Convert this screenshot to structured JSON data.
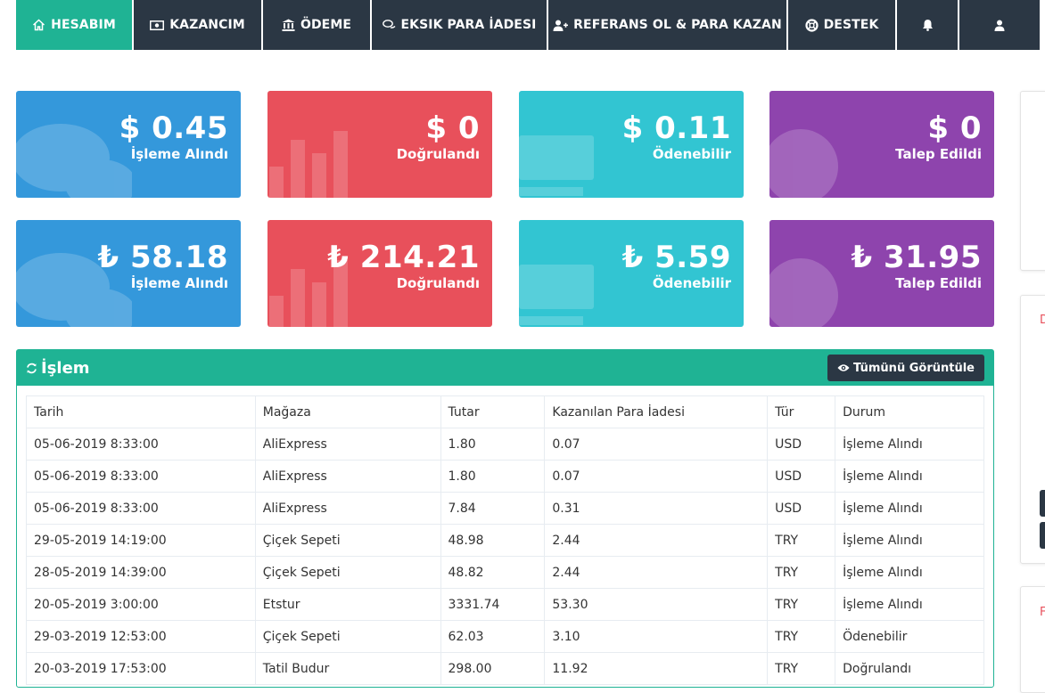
{
  "nav": {
    "items": [
      {
        "label": "HESABIM",
        "icon": "home-icon"
      },
      {
        "label": "KAZANCIM",
        "icon": "money-icon"
      },
      {
        "label": "ÖDEME",
        "icon": "bank-icon"
      },
      {
        "label": "EKSIK PARA İADESI",
        "icon": "chat-icon"
      },
      {
        "label": "REFERANS OL & PARA KAZAN",
        "icon": "user-plus-icon"
      },
      {
        "label": "DESTEK",
        "icon": "life-ring-icon"
      },
      {
        "label": "",
        "icon": "bell-icon"
      },
      {
        "label": "",
        "icon": "user-icon"
      }
    ],
    "active_index": 0
  },
  "stats": {
    "usd": [
      {
        "value": "$ 0.45",
        "label": "İşleme Alındı"
      },
      {
        "value": "$ 0",
        "label": "Doğrulandı"
      },
      {
        "value": "$ 0.11",
        "label": "Ödenebilir"
      },
      {
        "value": "$ 0",
        "label": "Talep Edildi"
      }
    ],
    "try": [
      {
        "value": "₺ 58.18",
        "label": "İşleme Alındı"
      },
      {
        "value": "₺ 214.21",
        "label": "Doğrulandı"
      },
      {
        "value": "₺ 5.59",
        "label": "Ödenebilir"
      },
      {
        "value": "₺ 31.95",
        "label": "Talep Edildi"
      }
    ]
  },
  "panel": {
    "title": "İşlem",
    "view_all_label": "Tümünü Görüntüle",
    "columns": [
      "Tarih",
      "Mağaza",
      "Tutar",
      "Kazanılan Para İadesi",
      "Tür",
      "Durum"
    ],
    "rows": [
      [
        "05-06-2019 8:33:00",
        "AliExpress",
        "1.80",
        "0.07",
        "USD",
        "İşleme Alındı"
      ],
      [
        "05-06-2019 8:33:00",
        "AliExpress",
        "1.80",
        "0.07",
        "USD",
        "İşleme Alındı"
      ],
      [
        "05-06-2019 8:33:00",
        "AliExpress",
        "7.84",
        "0.31",
        "USD",
        "İşleme Alındı"
      ],
      [
        "29-05-2019 14:19:00",
        "Çiçek Sepeti",
        "48.98",
        "2.44",
        "TRY",
        "İşleme Alındı"
      ],
      [
        "28-05-2019 14:39:00",
        "Çiçek Sepeti",
        "48.82",
        "2.44",
        "TRY",
        "İşleme Alındı"
      ],
      [
        "20-05-2019 3:00:00",
        "Etstur",
        "3331.74",
        "53.30",
        "TRY",
        "İşleme Alındı"
      ],
      [
        "29-03-2019 12:53:00",
        "Çiçek Sepeti",
        "62.03",
        "3.10",
        "TRY",
        "Ödenebilir"
      ],
      [
        "20-03-2019 17:53:00",
        "Tatil Budur",
        "298.00",
        "11.92",
        "TRY",
        "Doğrulandı"
      ]
    ]
  },
  "side": {
    "letter_1": "D",
    "letter_2": "F"
  },
  "colors": {
    "nav_dark": "#2b3744",
    "accent_green": "#1fb394",
    "blue": "#3498db",
    "red": "#e8505b",
    "teal": "#32c5d2",
    "purple": "#8e44ad"
  }
}
